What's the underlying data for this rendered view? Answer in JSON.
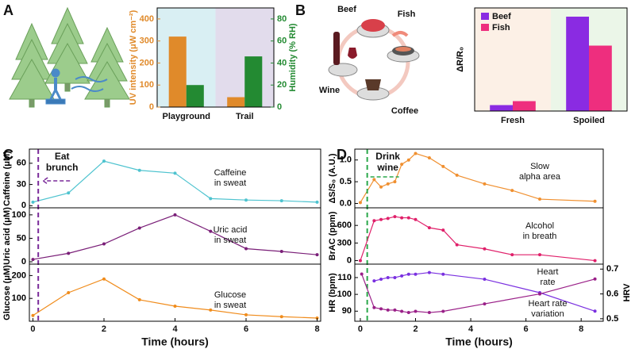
{
  "chart_data": [
    {
      "type": "bar",
      "panel": "A",
      "categories": [
        "Playground",
        "Trail"
      ],
      "background_colors": [
        "#d9eff3",
        "#e2dcec"
      ],
      "series": [
        {
          "name": "UV intensity (μW cm⁻²)",
          "color": "#e08a2a",
          "values": [
            320,
            45
          ]
        },
        {
          "name": "Humidity (% RH)",
          "color": "#238a32",
          "values": [
            20,
            46
          ],
          "axis": "y2"
        }
      ],
      "ylim": [
        0,
        450
      ],
      "yticks": [
        0,
        100,
        200,
        300,
        400
      ],
      "y2lim": [
        0,
        90
      ],
      "y2ticks": [
        0,
        20,
        40,
        60,
        80
      ]
    },
    {
      "type": "bar",
      "panel": "B",
      "illustration_labels": [
        "Beef",
        "Fish",
        "Wine",
        "Coffee"
      ],
      "ylabel": "ΔR/R₀",
      "categories": [
        "Fresh",
        "Spoiled"
      ],
      "background_colors": [
        "#fcf0e6",
        "#ebf6e8"
      ],
      "series": [
        {
          "name": "Beef",
          "color": "#8a2be2",
          "values": [
            0.15,
            2.38
          ]
        },
        {
          "name": "Fish",
          "color": "#ee2e7e",
          "values": [
            0.25,
            1.65
          ]
        }
      ],
      "ylim": [
        0,
        2.6
      ],
      "legend": "top-left"
    },
    {
      "type": "line",
      "panel": "C",
      "ylabel": "Caffeine (μM)",
      "notes": [
        [
          "Caffeine",
          "in sweat"
        ]
      ],
      "annotation": {
        "lines": [
          "Eat",
          "brunch"
        ],
        "x": 0.15,
        "color": "#7a2a9a"
      },
      "x": [
        0,
        1,
        2,
        3,
        4,
        5,
        6,
        7,
        8
      ],
      "series": [
        {
          "name": "Caffeine",
          "color": "#4ec3cf",
          "values": [
            5,
            18,
            63,
            50,
            46,
            10,
            8,
            7,
            5
          ]
        }
      ],
      "xlim": [
        -0.1,
        8.1
      ],
      "ylim": [
        -3,
        80
      ],
      "yticks": [
        0,
        30,
        60
      ]
    },
    {
      "type": "line",
      "ylabel": "Uric acid (μM)",
      "notes": [
        [
          "Uric acid",
          "in sweat"
        ]
      ],
      "x": [
        0,
        1,
        2,
        3,
        4,
        5,
        6,
        7,
        8
      ],
      "series": [
        {
          "name": "Uric acid",
          "color": "#7a1f78",
          "values": [
            5,
            18,
            38,
            72,
            100,
            65,
            28,
            22,
            15
          ]
        }
      ],
      "xlim": [
        -0.1,
        8.1
      ],
      "ylim": [
        -5,
        115
      ],
      "yticks": [
        0,
        50,
        100
      ]
    },
    {
      "type": "line",
      "ylabel": "Glucose (μM)",
      "xlabel": "Time (hours)",
      "notes": [
        [
          "Glucose",
          "in sweat"
        ]
      ],
      "x": [
        0,
        1,
        2,
        3,
        4,
        5,
        6,
        7,
        8
      ],
      "series": [
        {
          "name": "Glucose",
          "color": "#f08c1c",
          "values": [
            25,
            125,
            185,
            94,
            66,
            49,
            28,
            20,
            14
          ]
        }
      ],
      "xlim": [
        -0.1,
        8.1
      ],
      "ylim": [
        0,
        250
      ],
      "yticks": [
        100,
        200
      ],
      "xticks": [
        0,
        2,
        4,
        6,
        8
      ]
    },
    {
      "type": "line",
      "panel": "D",
      "ylabel": "ΔS/S₀ (A.U.)",
      "notes": [
        [
          "Slow",
          "alpha area"
        ]
      ],
      "annotation": {
        "lines": [
          "Drink",
          "wine"
        ],
        "x": 0.25,
        "color": "#2aa84a"
      },
      "x": [
        0,
        0.5,
        0.75,
        1,
        1.25,
        1.5,
        1.75,
        2,
        2.5,
        3,
        3.5,
        4.5,
        5.5,
        6.5,
        8.5
      ],
      "series": [
        {
          "name": "Slow alpha area",
          "color": "#f09030",
          "values": [
            0.02,
            0.55,
            0.38,
            0.45,
            0.5,
            0.9,
            1.0,
            1.15,
            1.05,
            0.85,
            0.65,
            0.45,
            0.3,
            0.1,
            0.05
          ]
        }
      ],
      "xlim": [
        -0.2,
        8.8
      ],
      "ylim": [
        -0.1,
        1.25
      ],
      "yticks": [
        {
          "value": 0,
          "label": "0.0"
        },
        0.5,
        {
          "value": 1,
          "label": "1.0"
        }
      ]
    },
    {
      "type": "line",
      "ylabel": "BrAC (ppm)",
      "notes": [
        [
          "Alcohol",
          "in breath"
        ]
      ],
      "x": [
        0,
        0.5,
        0.75,
        1,
        1.25,
        1.5,
        1.75,
        2,
        2.5,
        3,
        3.5,
        4.5,
        5.5,
        6.5,
        8.5
      ],
      "series": [
        {
          "name": "Alcohol in breath",
          "color": "#e0206a",
          "values": [
            0,
            680,
            700,
            720,
            750,
            730,
            730,
            700,
            560,
            520,
            270,
            200,
            100,
            100,
            0
          ]
        }
      ],
      "xlim": [
        -0.2,
        8.8
      ],
      "ylim": [
        -60,
        900
      ],
      "yticks": [
        0,
        300,
        600
      ]
    },
    {
      "type": "line",
      "ylabel": "HR (bpm)",
      "y2label": "HRV",
      "xlabel": "Time (hours)",
      "notes": [
        [
          "Heart",
          "rate"
        ],
        [
          "Heart rate",
          "variation"
        ]
      ],
      "x": [
        0.05,
        0.5,
        0.75,
        1,
        1.25,
        1.5,
        1.75,
        2,
        2.5,
        3,
        4.5,
        6.5,
        8.5
      ],
      "series": [
        {
          "name": "Heart rate",
          "color": "#7a30e0",
          "values": [
            null,
            108,
            109,
            110,
            110,
            111,
            112,
            112,
            113,
            112,
            109,
            101,
            90
          ]
        },
        {
          "name": "Heart rate variation",
          "color": "#9a2088",
          "axis": "y2",
          "values": [
            0.68,
            0.545,
            0.54,
            0.535,
            0.535,
            0.53,
            0.525,
            0.53,
            0.525,
            0.53,
            0.56,
            0.6,
            0.66
          ]
        }
      ],
      "xlim": [
        -0.2,
        8.8
      ],
      "ylim": [
        84,
        118
      ],
      "yticks": [
        90,
        100,
        110
      ],
      "y2lim": [
        0.49,
        0.72
      ],
      "y2ticks": [
        0.5,
        0.6,
        0.7
      ],
      "xticks": [
        0,
        2,
        4,
        6,
        8
      ]
    }
  ]
}
